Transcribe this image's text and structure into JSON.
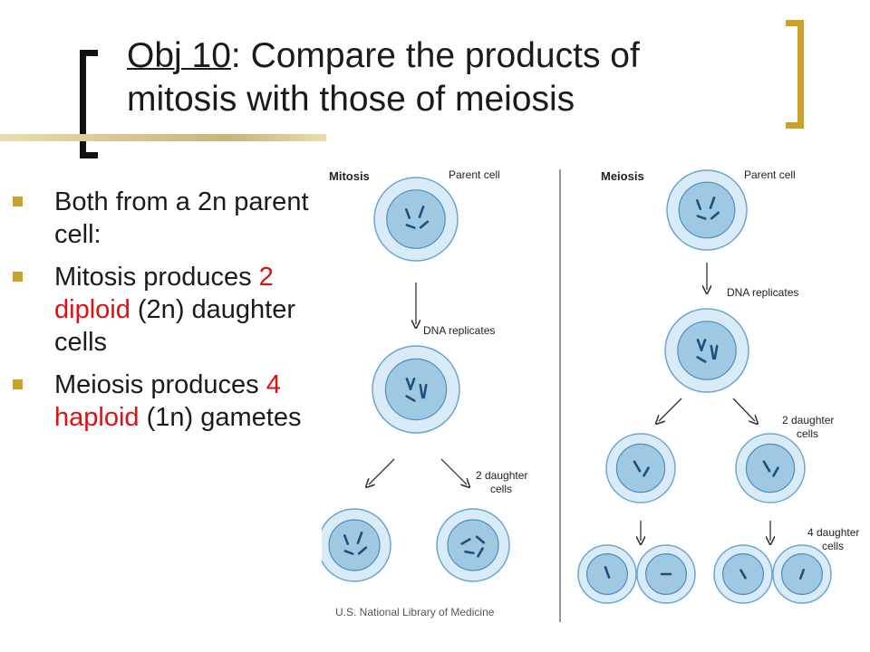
{
  "title": {
    "obj_label": "Obj 10",
    "rest_line1": ": Compare the products of",
    "line2": "mitosis with those of meiosis"
  },
  "bullets": [
    {
      "parts": [
        {
          "text": "Both from a 2n parent cell:"
        }
      ]
    },
    {
      "parts": [
        {
          "text": "Mitosis produces "
        },
        {
          "text": "2 diploid",
          "color": "#e01010"
        },
        {
          "text": " (2n) daughter cells"
        }
      ]
    },
    {
      "parts": [
        {
          "text": "Meiosis produces "
        },
        {
          "text": "4 haploid",
          "color": "#e01010"
        },
        {
          "text": " (1n) gametes"
        }
      ]
    }
  ],
  "figure": {
    "mitosis": {
      "heading": "Mitosis",
      "parent_label": "Parent cell",
      "replicate_label": "DNA replicates",
      "daughters_label_line1": "2 daughter",
      "daughters_label_line2": "cells"
    },
    "meiosis": {
      "heading": "Meiosis",
      "parent_label": "Parent cell",
      "replicate_label": "DNA replicates",
      "stage2_label_line1": "2 daughter",
      "stage2_label_line2": "cells",
      "stage3_label_line1": "4 daughter",
      "stage3_label_line2": "cells"
    },
    "credit": "U.S. National Library of Medicine"
  },
  "colors": {
    "accent_gold": "#c9a227",
    "highlight_red": "#e01010",
    "cell_fill": "#9fc9e3",
    "cell_ring": "#d9ebf6"
  }
}
